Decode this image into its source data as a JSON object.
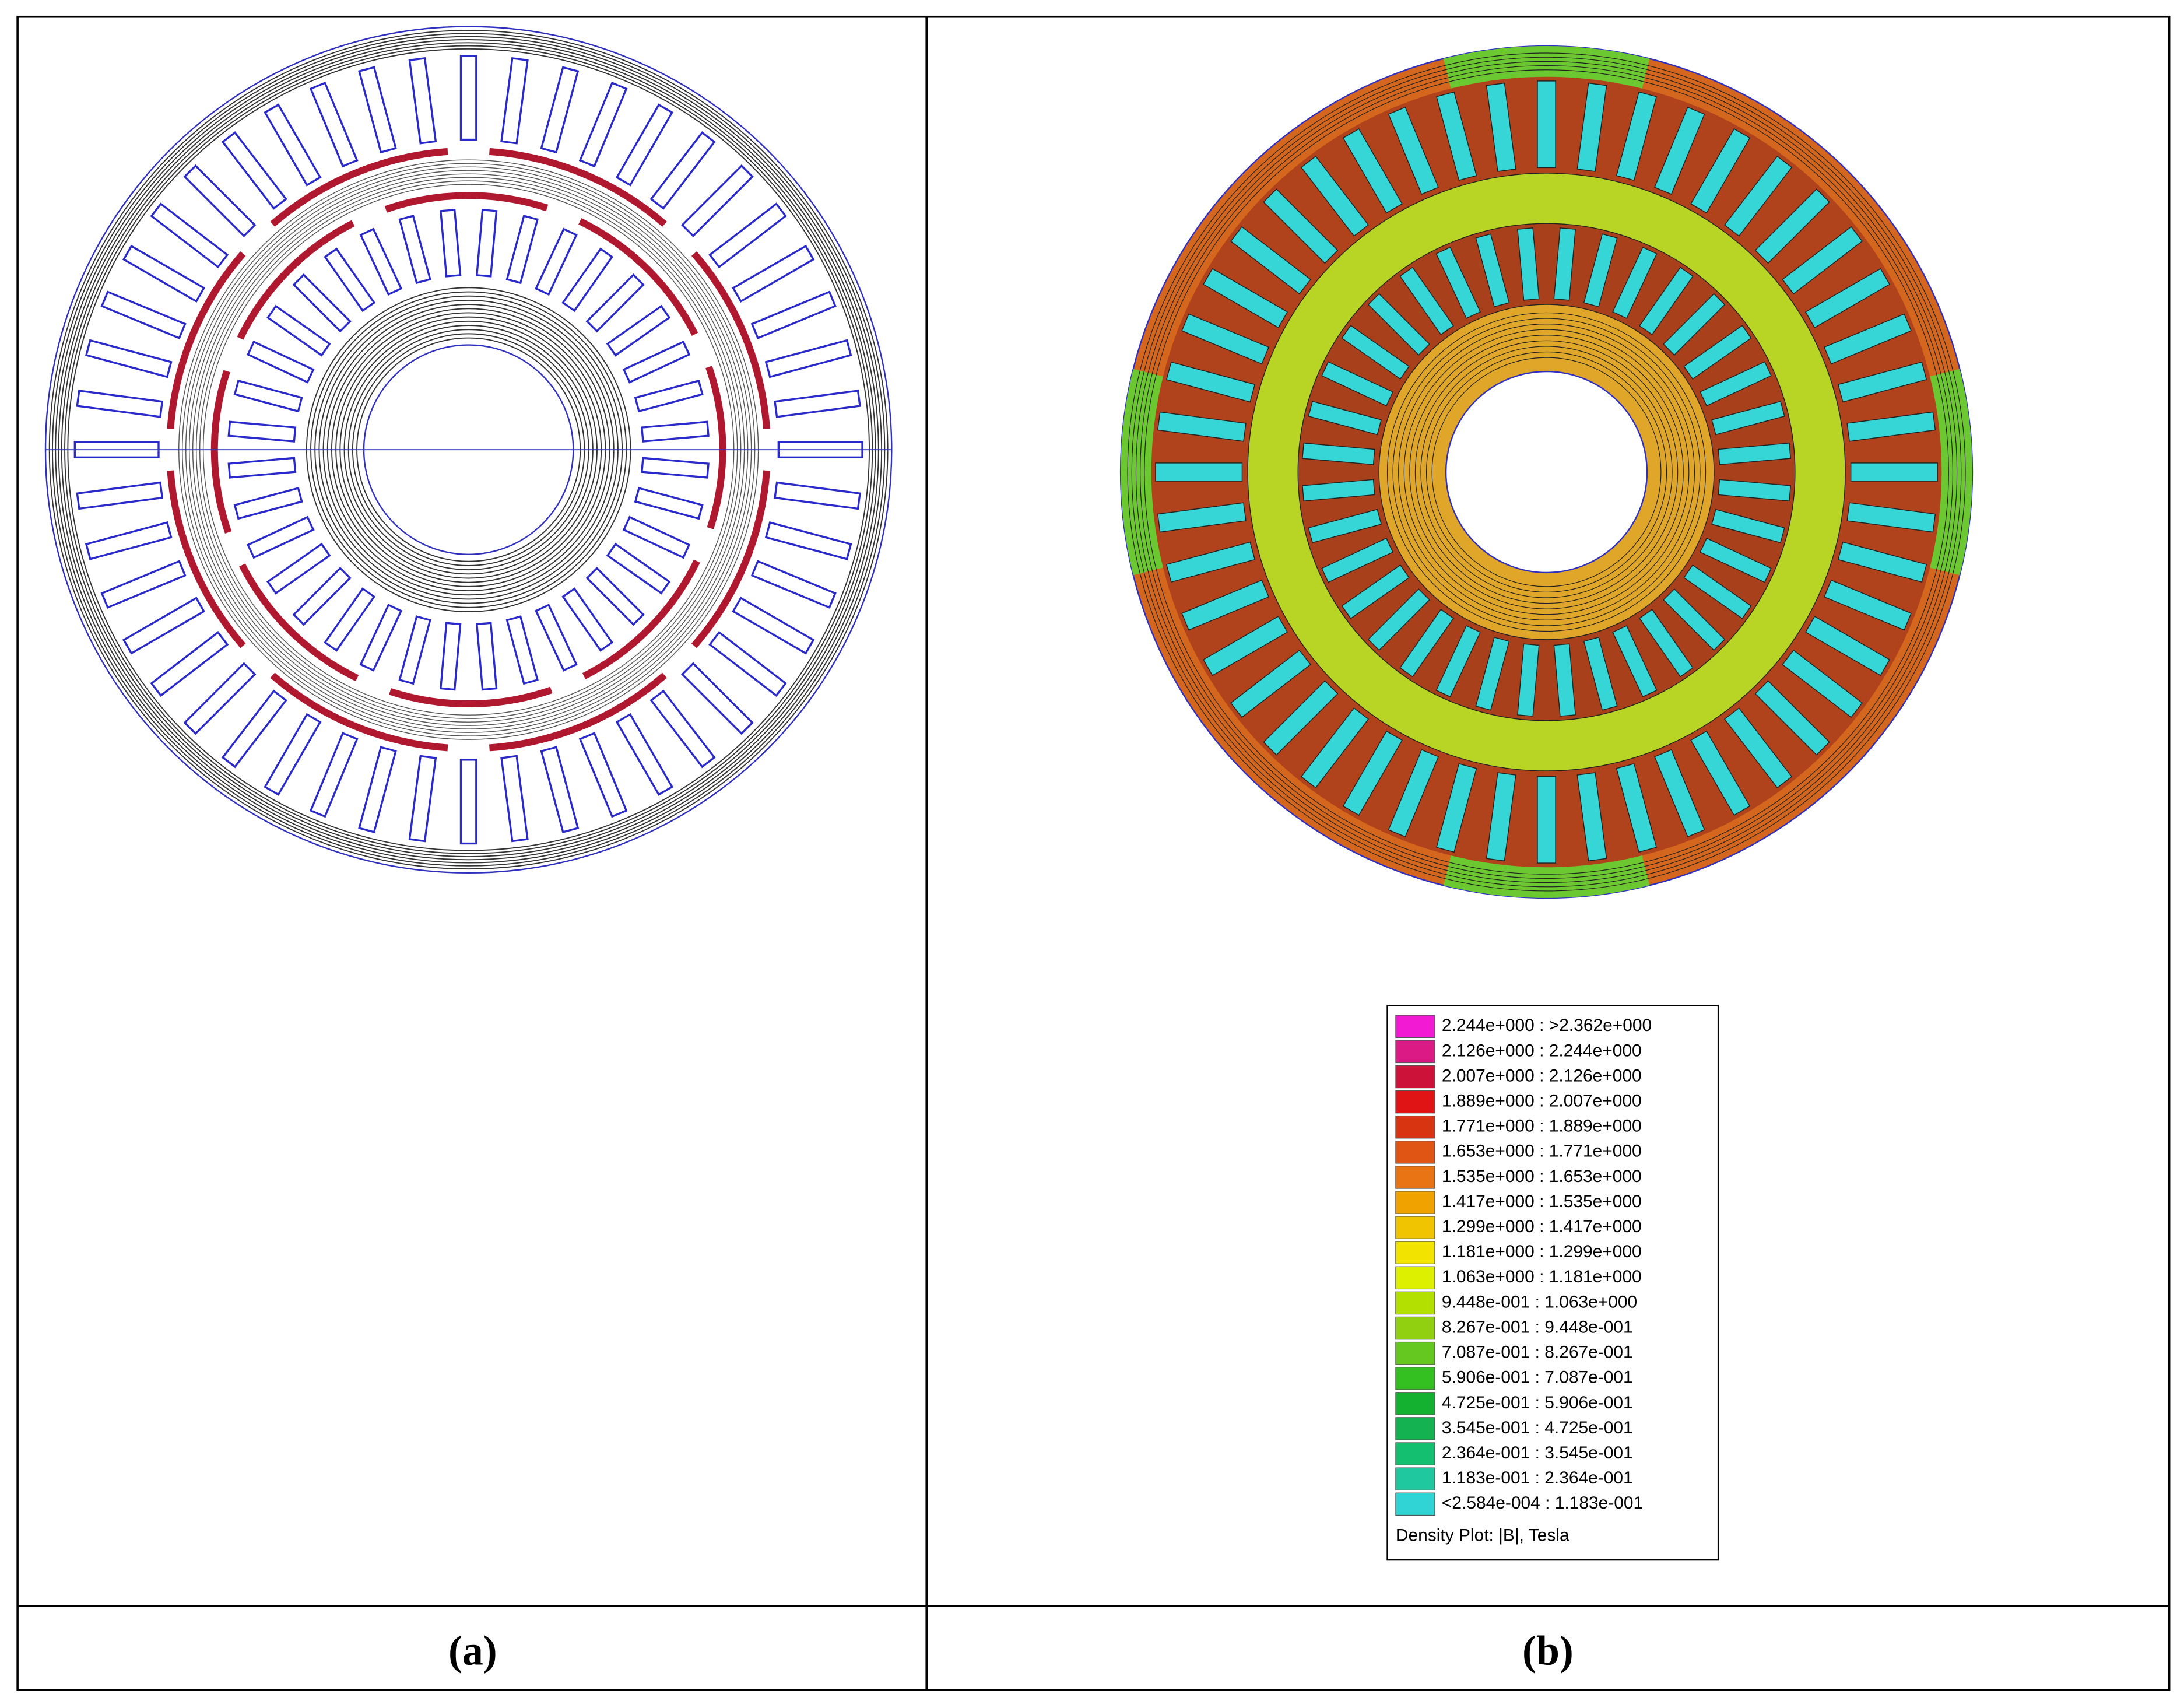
{
  "panels": [
    {
      "caption": "(a)"
    },
    {
      "caption": "(b)",
      "legend": {
        "entries": [
          {
            "label": "2.244e+000 : >2.362e+000",
            "color": "#f21ad2"
          },
          {
            "label": "2.126e+000 : 2.244e+000",
            "color": "#dc1a86"
          },
          {
            "label": "2.007e+000 : 2.126e+000",
            "color": "#cc1238"
          },
          {
            "label": "1.889e+000 : 2.007e+000",
            "color": "#e01414"
          },
          {
            "label": "1.771e+000 : 1.889e+000",
            "color": "#d83412"
          },
          {
            "label": "1.653e+000 : 1.771e+000",
            "color": "#e05414"
          },
          {
            "label": "1.535e+000 : 1.653e+000",
            "color": "#e87414"
          },
          {
            "label": "1.417e+000 : 1.535e+000",
            "color": "#f0a200"
          },
          {
            "label": "1.299e+000 : 1.417e+000",
            "color": "#f0c400"
          },
          {
            "label": "1.181e+000 : 1.299e+000",
            "color": "#f2e400"
          },
          {
            "label": "1.063e+000 : 1.181e+000",
            "color": "#dcf000"
          },
          {
            "label": "9.448e-001 : 1.063e+000",
            "color": "#b4e000"
          },
          {
            "label": "8.267e-001 : 9.448e-001",
            "color": "#90d010"
          },
          {
            "label": "7.087e-001 : 8.267e-001",
            "color": "#64c820"
          },
          {
            "label": "5.906e-001 : 7.087e-001",
            "color": "#34c020"
          },
          {
            "label": "4.725e-001 : 5.906e-001",
            "color": "#14b030"
          },
          {
            "label": "3.545e-001 : 4.725e-001",
            "color": "#14b250"
          },
          {
            "label": "2.364e-001 : 3.545e-001",
            "color": "#14c070"
          },
          {
            "label": "1.183e-001 : 2.364e-001",
            "color": "#20c8a0"
          },
          {
            "label": "<2.584e-004 : 1.183e-001",
            "color": "#30d4d4"
          }
        ],
        "title": "Density Plot: |B|, Tesla"
      }
    }
  ]
}
